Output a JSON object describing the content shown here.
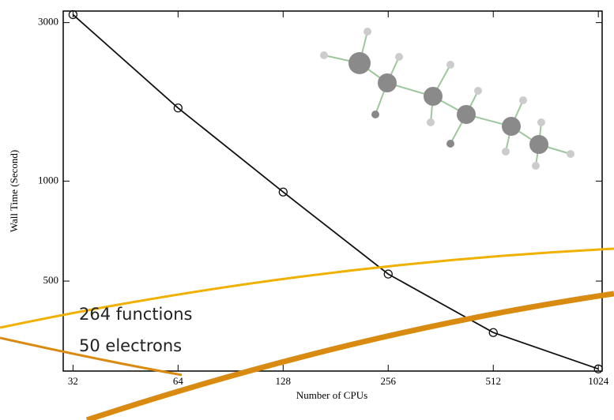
{
  "chart_data": {
    "type": "line",
    "xlabel": "Number of CPUs",
    "ylabel": "Wall Time (Second)",
    "x": [
      32,
      64,
      128,
      256,
      512,
      1024
    ],
    "values": [
      3170,
      1660,
      927,
      525,
      350,
      272
    ],
    "color": "#111111",
    "xscale": "log",
    "yscale": "log",
    "xlim": [
      30,
      1050
    ],
    "ylim": [
      268,
      3250
    ],
    "xticks": [
      32,
      64,
      128,
      256,
      512,
      1024
    ],
    "yticks": [
      500,
      1000,
      3000
    ],
    "annotations": [
      "264 functions",
      "50 electrons"
    ]
  }
}
